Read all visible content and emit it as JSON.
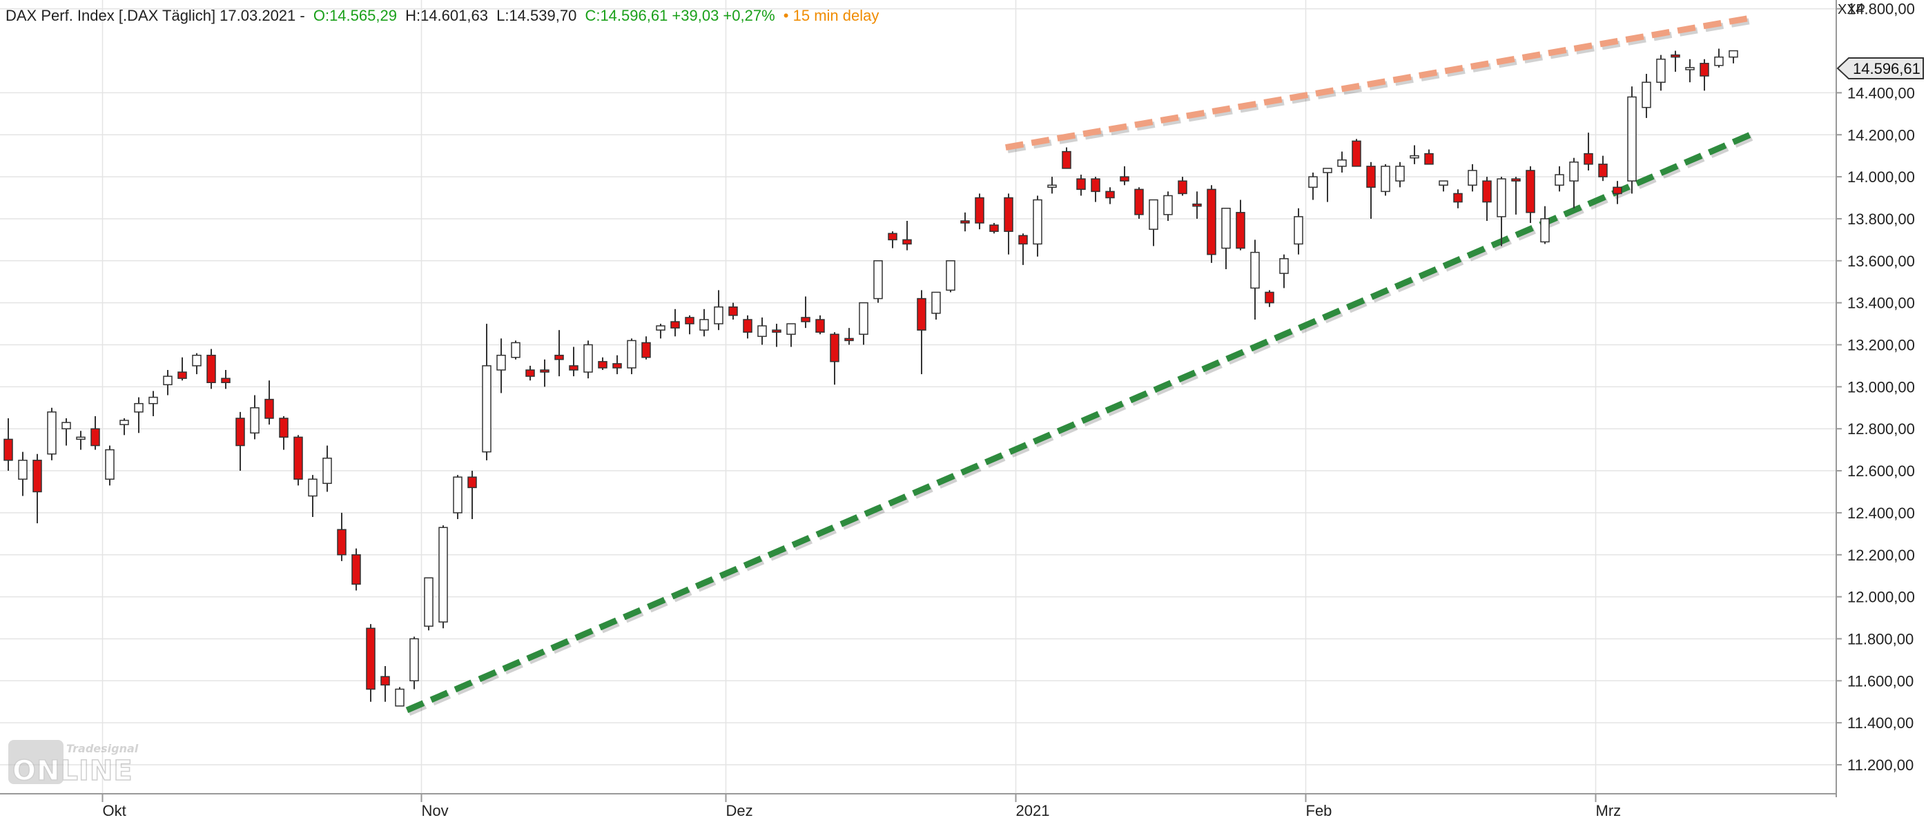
{
  "header": {
    "instrument": "DAX Perf. Index [.DAX Täglich] 17.03.2021 -",
    "open": "O:14.565,29",
    "high": "H:14.601,63",
    "low": "L:14.539,70",
    "close_change": "C:14.596,61 +39,03 +0,27%",
    "delay": "• 15 min delay"
  },
  "exchange_label": "XXP",
  "last_price_tag": "14.596,61",
  "logo": {
    "line1": "Tradesignal",
    "line2": "ONLINE"
  },
  "colors": {
    "up_body": "#ffffff",
    "down_body": "#e01010",
    "candle_outline": "#333333",
    "green_trendline": "#2e8b3e",
    "orange_trendline": "#f0a080",
    "header_green": "#1aa01a",
    "header_orange": "#f08c00"
  },
  "chart_data": {
    "type": "candlestick",
    "title": "DAX Perf. Index [.DAX Täglich] 17.03.2021",
    "ylim": [
      11100,
      14850
    ],
    "y_ticks": [
      "11.200,00",
      "11.400,00",
      "11.600,00",
      "11.800,00",
      "12.000,00",
      "12.200,00",
      "12.400,00",
      "12.600,00",
      "12.800,00",
      "13.000,00",
      "13.200,00",
      "13.400,00",
      "13.600,00",
      "13.800,00",
      "14.000,00",
      "14.200,00",
      "14.400,00",
      "14.800,00"
    ],
    "y_tick_values": [
      11200,
      11400,
      11600,
      11800,
      12000,
      12200,
      12400,
      12600,
      12800,
      13000,
      13200,
      13400,
      13600,
      13800,
      14000,
      14200,
      14400,
      14800
    ],
    "x_ticks": [
      {
        "label": "Okt",
        "index": 6.5
      },
      {
        "label": "Nov",
        "index": 28.5
      },
      {
        "label": "Dez",
        "index": 49.5
      },
      {
        "label": "2021",
        "index": 69.5
      },
      {
        "label": "Feb",
        "index": 89.5
      },
      {
        "label": "Mrz",
        "index": 109.5
      }
    ],
    "candles": [
      [
        12750,
        12850,
        12600,
        12650
      ],
      [
        12560,
        12690,
        12480,
        12650
      ],
      [
        12650,
        12680,
        12350,
        12500
      ],
      [
        12680,
        12900,
        12650,
        12880
      ],
      [
        12800,
        12850,
        12720,
        12830
      ],
      [
        12750,
        12790,
        12700,
        12760
      ],
      [
        12800,
        12860,
        12700,
        12720
      ],
      [
        12560,
        12720,
        12530,
        12700
      ],
      [
        12820,
        12850,
        12770,
        12840
      ],
      [
        12880,
        12950,
        12780,
        12920
      ],
      [
        12920,
        12980,
        12860,
        12950
      ],
      [
        13010,
        13080,
        12960,
        13050
      ],
      [
        13070,
        13140,
        13030,
        13040
      ],
      [
        13100,
        13160,
        13060,
        13150
      ],
      [
        13150,
        13180,
        12990,
        13020
      ],
      [
        13040,
        13080,
        12990,
        13020
      ],
      [
        12850,
        12880,
        12600,
        12720
      ],
      [
        12780,
        12960,
        12750,
        12900
      ],
      [
        12940,
        13030,
        12820,
        12850
      ],
      [
        12850,
        12860,
        12700,
        12760
      ],
      [
        12760,
        12770,
        12530,
        12560
      ],
      [
        12480,
        12580,
        12380,
        12560
      ],
      [
        12540,
        12720,
        12500,
        12660
      ],
      [
        12320,
        12400,
        12170,
        12200
      ],
      [
        12200,
        12230,
        12030,
        12060
      ],
      [
        11850,
        11870,
        11500,
        11560
      ],
      [
        11620,
        11670,
        11500,
        11580
      ],
      [
        11480,
        11570,
        11500,
        11560
      ],
      [
        11600,
        11810,
        11560,
        11800
      ],
      [
        11860,
        12090,
        11840,
        12090
      ],
      [
        11880,
        12340,
        11850,
        12330
      ],
      [
        12400,
        12580,
        12370,
        12570
      ],
      [
        12570,
        12600,
        12370,
        12520
      ],
      [
        12690,
        13300,
        12650,
        13100
      ],
      [
        13080,
        13230,
        12970,
        13150
      ],
      [
        13140,
        13220,
        13130,
        13210
      ],
      [
        13080,
        13100,
        13030,
        13050
      ],
      [
        13080,
        13130,
        13000,
        13070
      ],
      [
        13150,
        13270,
        13050,
        13130
      ],
      [
        13100,
        13190,
        13050,
        13080
      ],
      [
        13070,
        13220,
        13040,
        13200
      ],
      [
        13120,
        13140,
        13080,
        13090
      ],
      [
        13110,
        13150,
        13060,
        13090
      ],
      [
        13090,
        13230,
        13060,
        13220
      ],
      [
        13210,
        13240,
        13130,
        13140
      ],
      [
        13270,
        13300,
        13230,
        13290
      ],
      [
        13310,
        13370,
        13240,
        13280
      ],
      [
        13330,
        13340,
        13250,
        13300
      ],
      [
        13270,
        13370,
        13240,
        13320
      ],
      [
        13300,
        13460,
        13270,
        13380
      ],
      [
        13380,
        13400,
        13320,
        13340
      ],
      [
        13320,
        13340,
        13230,
        13260
      ],
      [
        13240,
        13330,
        13200,
        13290
      ],
      [
        13270,
        13300,
        13190,
        13260
      ],
      [
        13250,
        13300,
        13190,
        13300
      ],
      [
        13330,
        13430,
        13280,
        13310
      ],
      [
        13320,
        13340,
        13250,
        13260
      ],
      [
        13250,
        13260,
        13010,
        13120
      ],
      [
        13230,
        13280,
        13200,
        13220
      ],
      [
        13250,
        13400,
        13200,
        13400
      ],
      [
        13420,
        13600,
        13400,
        13600
      ],
      [
        13730,
        13740,
        13660,
        13700
      ],
      [
        13700,
        13790,
        13650,
        13680
      ],
      [
        13420,
        13460,
        13060,
        13270
      ],
      [
        13350,
        13450,
        13320,
        13450
      ],
      [
        13460,
        13600,
        13450,
        13600
      ],
      [
        13790,
        13830,
        13740,
        13780
      ],
      [
        13900,
        13920,
        13750,
        13780
      ],
      [
        13770,
        13780,
        13730,
        13740
      ],
      [
        13900,
        13920,
        13630,
        13740
      ],
      [
        13720,
        13730,
        13580,
        13680
      ],
      [
        13680,
        13910,
        13620,
        13890
      ],
      [
        13950,
        14000,
        13920,
        13960
      ],
      [
        14120,
        14140,
        14040,
        14040
      ],
      [
        13990,
        14010,
        13910,
        13940
      ],
      [
        13990,
        14000,
        13880,
        13930
      ],
      [
        13930,
        13950,
        13870,
        13900
      ],
      [
        14000,
        14050,
        13960,
        13980
      ],
      [
        13940,
        13950,
        13800,
        13820
      ],
      [
        13750,
        13890,
        13670,
        13890
      ],
      [
        13820,
        13930,
        13790,
        13910
      ],
      [
        13980,
        14000,
        13910,
        13920
      ],
      [
        13870,
        13930,
        13800,
        13860
      ],
      [
        13940,
        13960,
        13590,
        13630
      ],
      [
        13660,
        13850,
        13560,
        13850
      ],
      [
        13830,
        13890,
        13650,
        13660
      ],
      [
        13470,
        13700,
        13320,
        13640
      ],
      [
        13450,
        13460,
        13380,
        13400
      ],
      [
        13540,
        13630,
        13470,
        13610
      ],
      [
        13680,
        13850,
        13630,
        13810
      ],
      [
        13950,
        14020,
        13890,
        14000
      ],
      [
        14020,
        14020,
        13880,
        14040
      ],
      [
        14050,
        14120,
        14020,
        14080
      ],
      [
        14170,
        14180,
        14050,
        14050
      ],
      [
        14050,
        14070,
        13800,
        13950
      ],
      [
        13930,
        14060,
        13910,
        14050
      ],
      [
        13980,
        14070,
        13950,
        14050
      ],
      [
        14090,
        14150,
        14060,
        14100
      ],
      [
        14110,
        14130,
        14060,
        14060
      ],
      [
        13960,
        13980,
        13930,
        13980
      ],
      [
        13920,
        13940,
        13850,
        13880
      ],
      [
        13960,
        14060,
        13930,
        14030
      ],
      [
        13980,
        14000,
        13790,
        13880
      ],
      [
        13810,
        14000,
        13670,
        13990
      ],
      [
        13990,
        14000,
        13820,
        13980
      ],
      [
        14030,
        14050,
        13780,
        13830
      ],
      [
        13690,
        13860,
        13680,
        13800
      ],
      [
        13960,
        14050,
        13930,
        14010
      ],
      [
        13980,
        14090,
        13850,
        14070
      ],
      [
        14110,
        14210,
        14030,
        14060
      ],
      [
        14060,
        14100,
        13980,
        14000
      ],
      [
        13950,
        13980,
        13870,
        13920
      ],
      [
        13980,
        14430,
        13920,
        14380
      ],
      [
        14330,
        14490,
        14280,
        14450
      ],
      [
        14450,
        14580,
        14410,
        14560
      ],
      [
        14580,
        14600,
        14500,
        14570
      ],
      [
        14510,
        14560,
        14450,
        14520
      ],
      [
        14540,
        14560,
        14410,
        14480
      ],
      [
        14530,
        14610,
        14520,
        14570
      ],
      [
        14570,
        14600,
        14540,
        14600
      ]
    ],
    "trendlines": [
      {
        "name": "support",
        "from": [
          27.5,
          11460
        ],
        "to": [
          120.5,
          14210
        ]
      },
      {
        "name": "resistance",
        "from": [
          68.8,
          14140
        ],
        "to": [
          120.5,
          14760
        ]
      }
    ]
  }
}
